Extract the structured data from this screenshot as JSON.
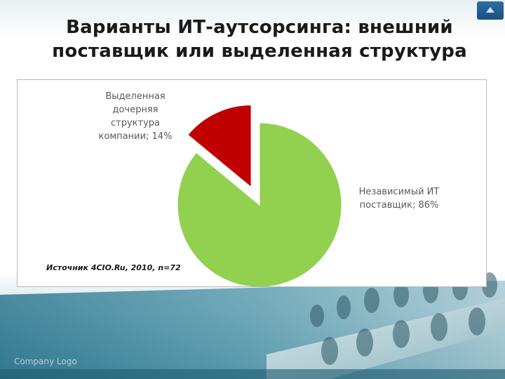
{
  "slide": {
    "title_line1": "Варианты ИТ-аутсорсинга: внешний",
    "title_line2": "поставщик или выделенная структура",
    "footer": "Company Logo"
  },
  "chart_data": {
    "type": "pie",
    "title": "",
    "source_note": "Источник 4CIO.Ru, 2010, n=72",
    "slices": [
      {
        "label_lines": [
          "Независимый ИТ",
          "поставщик; 86%"
        ],
        "category": "Независимый ИТ поставщик",
        "value": 86,
        "color": "#92d050",
        "exploded": false
      },
      {
        "label_lines": [
          "Выделенная",
          "дочерняя",
          "структура",
          "компании; 14%"
        ],
        "category": "Выделенная дочерняя структура компании",
        "value": 14,
        "color": "#c00000",
        "exploded": true
      }
    ]
  },
  "icons": {
    "logo": "up-arrow-logo-icon"
  }
}
